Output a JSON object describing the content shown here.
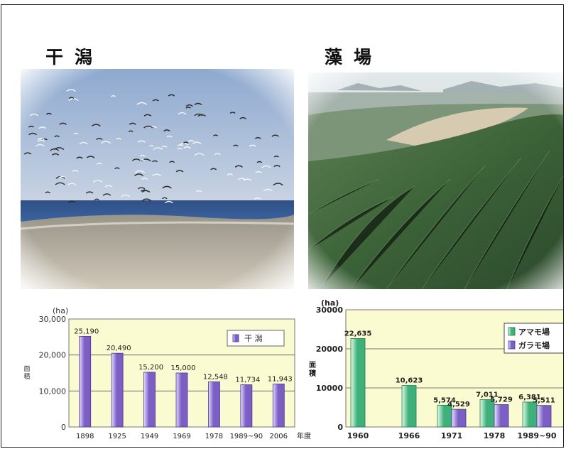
{
  "left": {
    "title": "干潟",
    "photo_alt": "",
    "chart_data": {
      "type": "bar",
      "unit": "(ha)",
      "ylabel": "面積",
      "xlabel": "年度",
      "ylim": [
        0,
        30000
      ],
      "yticks": [
        "0",
        "10,000",
        "20,000",
        "30,000"
      ],
      "categories": [
        "1898",
        "1925",
        "1949",
        "1969",
        "1978",
        "1989~90",
        "2006"
      ],
      "series": [
        {
          "name": "干 潟",
          "color": "#7b5fc4",
          "values": [
            25190,
            20490,
            15200,
            15000,
            12548,
            11734,
            11943
          ],
          "labels": [
            "25,190",
            "20,490",
            "15,200",
            "15,000",
            "12,548",
            "11,734",
            "11,943"
          ]
        }
      ],
      "grid": true,
      "legend": "top-right"
    }
  },
  "right": {
    "title": "藻場",
    "chart_data": {
      "type": "bar",
      "unit": "(ha)",
      "ylabel": "面積",
      "ylim": [
        0,
        30000
      ],
      "yticks": [
        "0",
        "10000",
        "20000",
        "30000"
      ],
      "categories": [
        "1960",
        "1966",
        "1971",
        "1978",
        "1989~90"
      ],
      "series": [
        {
          "name": "アマモ場",
          "color": "#3fb07a",
          "values": [
            22635,
            10623,
            5574,
            7011,
            6381
          ],
          "labels": [
            "22,635",
            "10,623",
            "5,574",
            "7,011",
            "6,381"
          ]
        },
        {
          "name": "ガラモ場",
          "color": "#7b5fc4",
          "values": [
            null,
            null,
            4529,
            5729,
            5511
          ],
          "labels": [
            "",
            "",
            "4,529",
            "5,729",
            "5,511"
          ]
        }
      ],
      "grid": true,
      "legend": "top-right"
    }
  }
}
